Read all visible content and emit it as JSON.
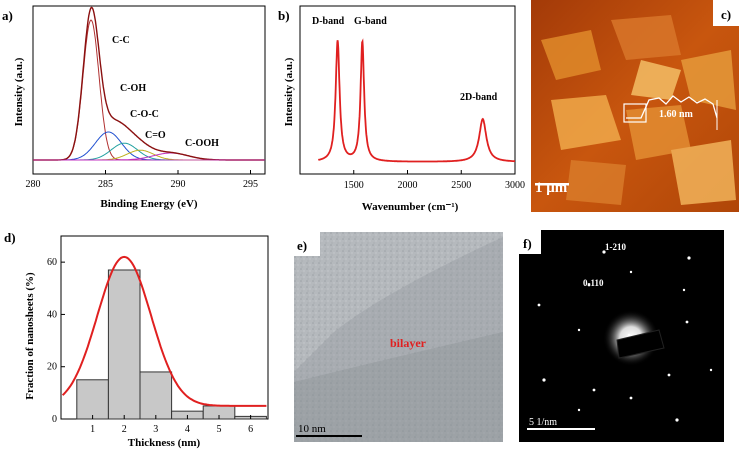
{
  "panels": {
    "a": {
      "label": "a)",
      "chart_data": {
        "type": "line",
        "xlabel": "Binding Energy (eV)",
        "ylabel": "Intensity (a.u.)",
        "xlim": [
          280,
          296
        ],
        "xticks": [
          280,
          285,
          290,
          295
        ],
        "peaks": [
          {
            "name": "C-C",
            "center": 284.0,
            "height": 1.0,
            "color": "#b03030"
          },
          {
            "name": "C-OH",
            "center": 285.2,
            "height": 0.2,
            "color": "#2050d0"
          },
          {
            "name": "C-O-C",
            "center": 286.3,
            "height": 0.12,
            "color": "#20a0a0"
          },
          {
            "name": "C=O",
            "center": 287.4,
            "height": 0.07,
            "color": "#c0b020"
          },
          {
            "name": "C-OOH",
            "center": 289.5,
            "height": 0.05,
            "color": "#c030c0"
          }
        ],
        "grid": false
      }
    },
    "b": {
      "label": "b)",
      "chart_data": {
        "type": "line",
        "xlabel": "Wavenumber (cm⁻¹)",
        "ylabel": "Intensity (a.u.)",
        "xlim": [
          1000,
          3000
        ],
        "xticks": [
          1500,
          2000,
          2500,
          3000
        ],
        "peaks": [
          {
            "name": "D-band",
            "center": 1350,
            "height": 0.93
          },
          {
            "name": "G-band",
            "center": 1580,
            "height": 0.92
          },
          {
            "name": "2D-band",
            "center": 2700,
            "height": 0.33
          }
        ],
        "series_color": "#e02020",
        "grid": false
      }
    },
    "c": {
      "label": "c)",
      "scalebar": "1 μm",
      "height_label": "1.60 nm"
    },
    "d": {
      "label": "d)",
      "chart_data": {
        "type": "bar",
        "xlabel": "Thickness (nm)",
        "ylabel": "Fraction of nanosheets (%)",
        "bin_edges": [
          0.5,
          1.5,
          2.5,
          3.5,
          4.5,
          5.5,
          6.5
        ],
        "values": [
          15,
          57,
          18,
          3,
          5,
          1
        ],
        "xticks": [
          1,
          2,
          3,
          4,
          5,
          6
        ],
        "yticks": [
          0,
          20,
          40,
          60
        ],
        "ylim": [
          0,
          70
        ],
        "fit": {
          "center": 2.0,
          "height": 62,
          "sigma": 0.85,
          "baseline": 5,
          "color": "#e02020"
        },
        "bar_color": "#c8c8c8"
      }
    },
    "e": {
      "label": "e)",
      "annotation": "bilayer",
      "scalebar": "10 nm"
    },
    "f": {
      "label": "f)",
      "annotations": [
        "1-210",
        "0-110"
      ],
      "scalebar": "5 1/nm"
    }
  }
}
